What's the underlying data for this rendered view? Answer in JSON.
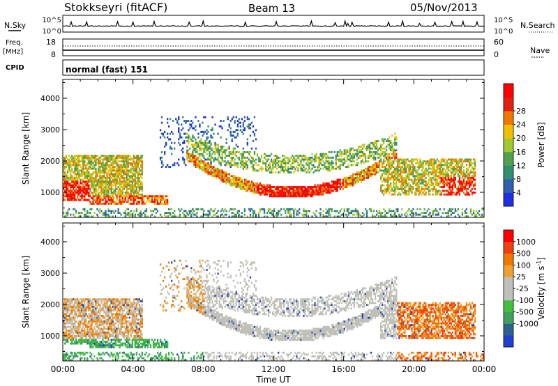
{
  "header": {
    "station": "Stokkseyri (fitACF)",
    "beam": "Beam 13",
    "date": "05/Nov/2013"
  },
  "left_labels": {
    "nsky": "N.Sky",
    "freq": "Freq.",
    "freq_unit": "[MHz]",
    "cpid": "CPID"
  },
  "right_labels": {
    "nsearch": "N.Search",
    "nave": "Nave"
  },
  "mode_text": "normal (fast) 151",
  "noise_axis": {
    "left": [
      "10^5",
      "10^0"
    ],
    "right": [
      "10^5",
      "10^0"
    ]
  },
  "freq_axis": {
    "left": [
      "18",
      "8"
    ],
    "right": [
      "60",
      "0"
    ]
  },
  "colors": {
    "power": [
      "#1f2fe0",
      "#2f5fb0",
      "#2f8f70",
      "#4fa050",
      "#a0c830",
      "#f0c000",
      "#f07800",
      "#e02010",
      "#ff0000"
    ],
    "velocity": [
      "#ff0000",
      "#f04010",
      "#f07800",
      "#f0a030",
      "#c0c0b8",
      "#c0c0b8",
      "#40c040",
      "#40a060",
      "#306090",
      "#2040d0"
    ]
  },
  "chart_data": [
    {
      "type": "heatmap",
      "name": "power",
      "ylabel": "Slant Range [km]",
      "xlabel": "Time UT",
      "xticks": [
        "00:00",
        "04:00",
        "08:00",
        "12:00",
        "16:00",
        "20:00",
        "00:00"
      ],
      "yticks": [
        "1000",
        "2000",
        "3000",
        "4000"
      ],
      "ylim": [
        200,
        4600
      ],
      "xlim": [
        0,
        24
      ],
      "colorbar": {
        "label": "Power [dB]",
        "ticks": [
          "4",
          "8",
          "12",
          "16",
          "20",
          "24",
          "28"
        ],
        "range": [
          0,
          30
        ]
      }
    },
    {
      "type": "heatmap",
      "name": "velocity",
      "ylabel": "Slant Range [km]",
      "xlabel": "Time UT",
      "xticks": [
        "00:00",
        "04:00",
        "08:00",
        "12:00",
        "16:00",
        "20:00",
        "00:00"
      ],
      "yticks": [
        "1000",
        "2000",
        "3000",
        "4000"
      ],
      "ylim": [
        200,
        4600
      ],
      "xlim": [
        0,
        24
      ],
      "colorbar": {
        "label": "Velocity [m s",
        "label_sup": "-1",
        "label_end": "]",
        "ticks": [
          "1000",
          "500",
          "100",
          "25",
          "-25",
          "-100",
          "-500",
          "-1000"
        ]
      }
    }
  ]
}
